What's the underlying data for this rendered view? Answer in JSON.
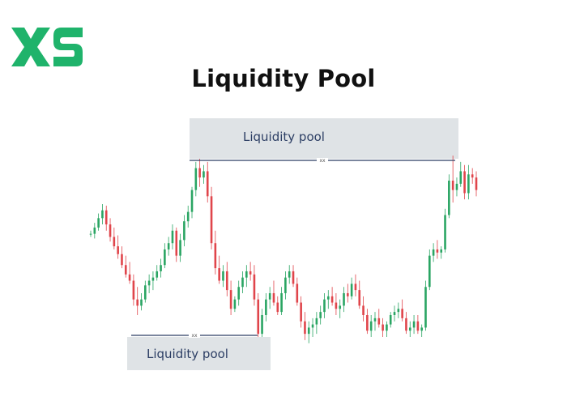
{
  "brand": {
    "logo_text": "XS",
    "color": "#1fb36b"
  },
  "title": "Liquidity Pool",
  "colors": {
    "up": "#2aa563",
    "down": "#e0454b",
    "line": "#2c3e64",
    "box": "#dfe3e6"
  },
  "chart_data": {
    "type": "candlestick",
    "title": "Liquidity Pool",
    "xlabel": "",
    "ylabel": "",
    "grid": false,
    "annotations": [
      {
        "label": "Liquidity pool",
        "level": "high",
        "tag": "xx"
      },
      {
        "label": "Liquidity pool",
        "level": "low",
        "tag": "xx"
      }
    ],
    "candles": [
      [
        60,
        62,
        58,
        60
      ],
      [
        60,
        67,
        57,
        64
      ],
      [
        64,
        73,
        62,
        70
      ],
      [
        70,
        79,
        66,
        75
      ],
      [
        75,
        78,
        62,
        66
      ],
      [
        66,
        70,
        55,
        58
      ],
      [
        58,
        64,
        50,
        52
      ],
      [
        52,
        59,
        44,
        47
      ],
      [
        47,
        52,
        38,
        40
      ],
      [
        40,
        46,
        32,
        34
      ],
      [
        34,
        42,
        28,
        30
      ],
      [
        30,
        34,
        14,
        18
      ],
      [
        18,
        26,
        8,
        14
      ],
      [
        14,
        22,
        11,
        18
      ],
      [
        18,
        30,
        16,
        27
      ],
      [
        27,
        34,
        22,
        30
      ],
      [
        30,
        36,
        24,
        32
      ],
      [
        32,
        40,
        30,
        36
      ],
      [
        36,
        44,
        32,
        40
      ],
      [
        40,
        54,
        38,
        50
      ],
      [
        50,
        58,
        46,
        54
      ],
      [
        54,
        66,
        50,
        62
      ],
      [
        62,
        64,
        42,
        46
      ],
      [
        46,
        60,
        42,
        56
      ],
      [
        56,
        72,
        52,
        68
      ],
      [
        68,
        78,
        64,
        74
      ],
      [
        74,
        90,
        70,
        88
      ],
      [
        88,
        106,
        84,
        102
      ],
      [
        102,
        108,
        90,
        96
      ],
      [
        96,
        104,
        92,
        100
      ],
      [
        100,
        106,
        80,
        84
      ],
      [
        84,
        90,
        50,
        54
      ],
      [
        54,
        62,
        34,
        38
      ],
      [
        38,
        46,
        28,
        30
      ],
      [
        30,
        40,
        26,
        36
      ],
      [
        36,
        42,
        20,
        24
      ],
      [
        24,
        30,
        8,
        12
      ],
      [
        12,
        20,
        10,
        18
      ],
      [
        18,
        30,
        14,
        26
      ],
      [
        26,
        36,
        22,
        32
      ],
      [
        32,
        40,
        26,
        36
      ],
      [
        36,
        42,
        30,
        34
      ],
      [
        34,
        40,
        14,
        18
      ],
      [
        18,
        22,
        -6,
        -4
      ],
      [
        -4,
        12,
        -6,
        8
      ],
      [
        8,
        22,
        4,
        18
      ],
      [
        18,
        26,
        12,
        22
      ],
      [
        22,
        30,
        14,
        16
      ],
      [
        16,
        20,
        8,
        10
      ],
      [
        10,
        26,
        8,
        22
      ],
      [
        22,
        36,
        18,
        32
      ],
      [
        32,
        40,
        28,
        36
      ],
      [
        36,
        40,
        26,
        28
      ],
      [
        28,
        32,
        14,
        16
      ],
      [
        16,
        20,
        0,
        4
      ],
      [
        4,
        10,
        -8,
        -4
      ],
      [
        -4,
        4,
        -10,
        0
      ],
      [
        0,
        6,
        -6,
        2
      ],
      [
        2,
        10,
        -4,
        6
      ],
      [
        6,
        14,
        2,
        10
      ],
      [
        10,
        22,
        6,
        18
      ],
      [
        18,
        24,
        12,
        20
      ],
      [
        20,
        26,
        14,
        16
      ],
      [
        16,
        22,
        8,
        12
      ],
      [
        12,
        18,
        6,
        14
      ],
      [
        14,
        26,
        10,
        22
      ],
      [
        22,
        28,
        16,
        20
      ],
      [
        20,
        32,
        18,
        28
      ],
      [
        28,
        34,
        20,
        24
      ],
      [
        24,
        30,
        12,
        14
      ],
      [
        14,
        20,
        4,
        8
      ],
      [
        8,
        12,
        -4,
        -2
      ],
      [
        -2,
        8,
        -6,
        4
      ],
      [
        4,
        10,
        -2,
        6
      ],
      [
        6,
        12,
        0,
        2
      ],
      [
        2,
        6,
        -6,
        -2
      ],
      [
        -2,
        4,
        -6,
        2
      ],
      [
        2,
        10,
        0,
        8
      ],
      [
        8,
        14,
        4,
        10
      ],
      [
        10,
        16,
        6,
        12
      ],
      [
        12,
        18,
        4,
        6
      ],
      [
        6,
        10,
        -4,
        -2
      ],
      [
        -2,
        4,
        -6,
        0
      ],
      [
        0,
        8,
        -4,
        4
      ],
      [
        4,
        8,
        -4,
        -2
      ],
      [
        -2,
        2,
        -6,
        0
      ],
      [
        0,
        30,
        -2,
        26
      ],
      [
        26,
        50,
        24,
        46
      ],
      [
        46,
        54,
        42,
        50
      ],
      [
        50,
        56,
        44,
        48
      ],
      [
        48,
        52,
        44,
        50
      ],
      [
        50,
        76,
        48,
        72
      ],
      [
        72,
        98,
        70,
        94
      ],
      [
        94,
        110,
        80,
        88
      ],
      [
        88,
        96,
        84,
        92
      ],
      [
        92,
        106,
        90,
        100
      ],
      [
        100,
        104,
        82,
        86
      ],
      [
        86,
        104,
        82,
        98
      ],
      [
        98,
        102,
        92,
        96
      ],
      [
        96,
        100,
        84,
        88
      ]
    ],
    "levels": {
      "high": 108,
      "low": -6
    }
  }
}
